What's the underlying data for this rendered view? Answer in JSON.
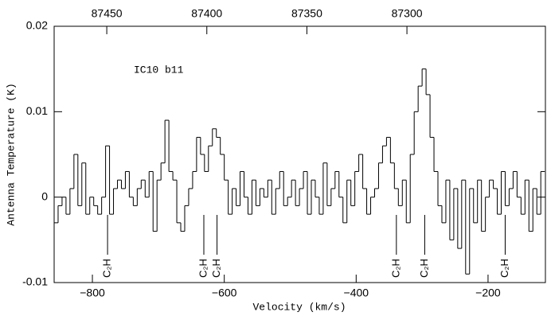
{
  "chart_data": {
    "type": "step",
    "xlabel": "Velocity (km/s)",
    "ylabel": "Antenna Temperature (K)",
    "annotation": "IC10 b11",
    "xlim": [
      -858,
      -113
    ],
    "xticks": [
      {
        "value": -800,
        "label": "−800"
      },
      {
        "value": -600,
        "label": "−600"
      },
      {
        "value": -400,
        "label": "−400"
      },
      {
        "value": -200,
        "label": "−200"
      }
    ],
    "x2lim": [
      87476.3,
      87230.8
    ],
    "x2ticks": [
      87450,
      87400,
      87350,
      87300
    ],
    "ylim": [
      -0.01,
      0.02
    ],
    "yticks": [
      -0.01,
      0,
      0.01,
      0.02
    ],
    "color": "#000000",
    "x": [
      -855,
      -849,
      -843,
      -837,
      -831,
      -825,
      -819,
      -813,
      -807,
      -801,
      -795,
      -789,
      -783,
      -777,
      -771,
      -765,
      -759,
      -753,
      -747,
      -741,
      -735,
      -729,
      -723,
      -717,
      -711,
      -705,
      -699,
      -693,
      -687,
      -681,
      -675,
      -669,
      -663,
      -657,
      -651,
      -645,
      -639,
      -633,
      -627,
      -621,
      -615,
      -609,
      -603,
      -597,
      -591,
      -585,
      -579,
      -573,
      -567,
      -561,
      -555,
      -549,
      -543,
      -537,
      -531,
      -525,
      -519,
      -513,
      -507,
      -501,
      -495,
      -489,
      -483,
      -477,
      -471,
      -465,
      -459,
      -453,
      -447,
      -441,
      -435,
      -429,
      -423,
      -417,
      -411,
      -405,
      -399,
      -393,
      -387,
      -381,
      -375,
      -369,
      -363,
      -357,
      -351,
      -345,
      -339,
      -333,
      -327,
      -321,
      -315,
      -309,
      -303,
      -297,
      -291,
      -285,
      -279,
      -273,
      -267,
      -261,
      -255,
      -249,
      -243,
      -237,
      -231,
      -225,
      -219,
      -213,
      -207,
      -201,
      -195,
      -189,
      -183,
      -177,
      -171,
      -165,
      -159,
      -153,
      -147,
      -141,
      -135,
      -129,
      -123,
      -117
    ],
    "values": [
      -0.003,
      -0.001,
      0,
      -0.002,
      0.001,
      0.005,
      -0.001,
      0.004,
      -0.002,
      0,
      -0.001,
      -0.002,
      0,
      0.006,
      -0.002,
      0.001,
      0.002,
      0.001,
      0.003,
      0,
      -0.001,
      0.001,
      0.002,
      0,
      0.003,
      -0.004,
      0.002,
      0.004,
      0.009,
      0.003,
      0.002,
      -0.003,
      -0.004,
      -0.001,
      0.001,
      0.003,
      0.007,
      0.005,
      0.003,
      0.006,
      0.008,
      0.007,
      0.005,
      0.002,
      -0.002,
      0.001,
      -0.001,
      0.003,
      0,
      -0.002,
      0.002,
      -0.001,
      0.001,
      0,
      0.002,
      -0.002,
      0.001,
      0.003,
      -0.001,
      0,
      0.002,
      -0.001,
      0.001,
      0.003,
      -0.002,
      0.002,
      0,
      -0.002,
      0.004,
      -0.001,
      0.001,
      0.003,
      0,
      -0.003,
      0.002,
      -0.001,
      0.003,
      0.005,
      0.001,
      -0.002,
      0,
      0.001,
      0.004,
      0.006,
      0.007,
      0.004,
      0.001,
      -0.001,
      0.002,
      -0.003,
      0.005,
      0.01,
      0.013,
      0.015,
      0.012,
      0.007,
      0.003,
      -0.001,
      -0.003,
      0.002,
      -0.005,
      0.001,
      -0.006,
      0.002,
      -0.009,
      0.001,
      -0.003,
      0.002,
      -0.004,
      0,
      0.002,
      0.001,
      -0.002,
      0.003,
      -0.001,
      0.001,
      0.003,
      0,
      -0.002,
      0.002,
      -0.004,
      0.001,
      -0.002,
      0.003
    ],
    "line_markers": [
      {
        "label": "C₂H",
        "x": -777
      },
      {
        "label": "C₂H",
        "x": -631
      },
      {
        "label": "C₂H",
        "x": -611
      },
      {
        "label": "C₂H",
        "x": -339
      },
      {
        "label": "C₂H",
        "x": -296
      },
      {
        "label": "C₂H",
        "x": -174
      }
    ]
  }
}
